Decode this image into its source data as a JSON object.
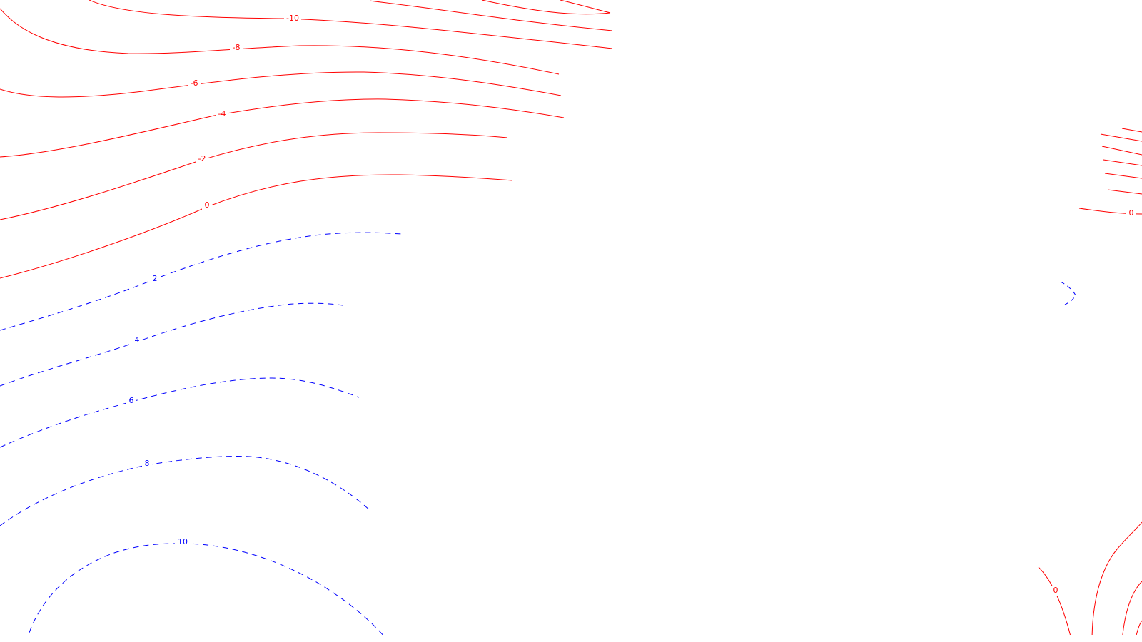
{
  "style": {
    "positive_color": "#ff0000",
    "negative_color": "#0000ff",
    "background": "#ffffff"
  },
  "contours": {
    "positive": [
      {
        "label": "-10"
      },
      {
        "label": "-8"
      },
      {
        "label": "-6"
      },
      {
        "label": "-4"
      },
      {
        "label": "-2"
      },
      {
        "label": "0"
      }
    ],
    "negative": [
      {
        "label": "2"
      },
      {
        "label": "4"
      },
      {
        "label": "6"
      },
      {
        "label": "8"
      },
      {
        "label": "10"
      }
    ],
    "right_upper_zero": {
      "label": "0"
    },
    "right_lower_zero": {
      "label": "0"
    }
  }
}
